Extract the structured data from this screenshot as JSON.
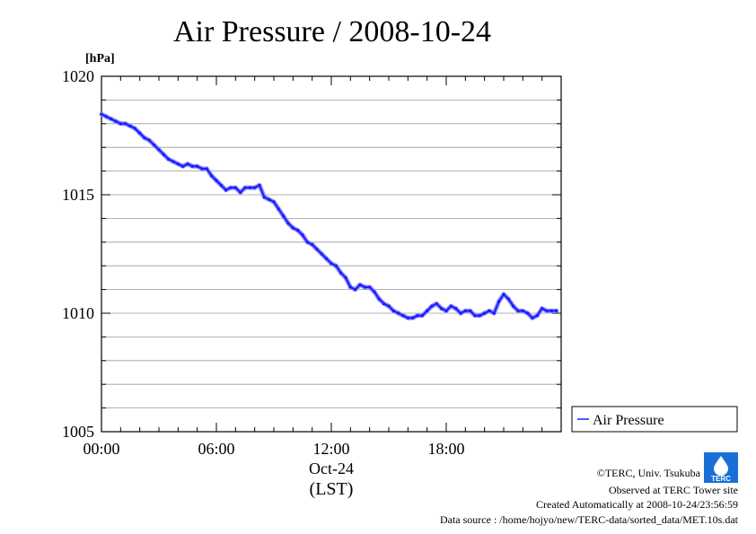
{
  "chart_data": {
    "type": "line",
    "title": "Air Pressure / 2008-10-24",
    "y_unit_label": "[hPa]",
    "xlabel_date": "Oct-24",
    "xlabel_tz": "(LST)",
    "x_ticks": [
      "00:00",
      "06:00",
      "12:00",
      "18:00"
    ],
    "y_ticks": [
      "1005",
      "1010",
      "1015",
      "1020"
    ],
    "ylim": [
      1005,
      1020
    ],
    "xlim_hours": [
      0,
      24
    ],
    "grid": true,
    "legend_position": "right",
    "series": [
      {
        "name": "Air Pressure",
        "color": "#1a1aff",
        "x": [
          0.0,
          0.25,
          0.5,
          0.75,
          1.0,
          1.25,
          1.5,
          1.75,
          2.0,
          2.25,
          2.5,
          2.75,
          3.0,
          3.25,
          3.5,
          3.75,
          4.0,
          4.25,
          4.5,
          4.75,
          5.0,
          5.25,
          5.5,
          5.75,
          6.0,
          6.25,
          6.5,
          6.75,
          7.0,
          7.25,
          7.5,
          7.75,
          8.0,
          8.25,
          8.5,
          8.75,
          9.0,
          9.25,
          9.5,
          9.75,
          10.0,
          10.25,
          10.5,
          10.75,
          11.0,
          11.25,
          11.5,
          11.75,
          12.0,
          12.25,
          12.5,
          12.75,
          13.0,
          13.25,
          13.5,
          13.75,
          14.0,
          14.25,
          14.5,
          14.75,
          15.0,
          15.25,
          15.5,
          15.75,
          16.0,
          16.25,
          16.5,
          16.75,
          17.0,
          17.25,
          17.5,
          17.75,
          18.0,
          18.25,
          18.5,
          18.75,
          19.0,
          19.25,
          19.5,
          19.75,
          20.0,
          20.25,
          20.5,
          20.75,
          21.0,
          21.25,
          21.5,
          21.75,
          22.0,
          22.25,
          22.5,
          22.75,
          23.0,
          23.25,
          23.5,
          23.75
        ],
        "values": [
          1018.4,
          1018.3,
          1018.2,
          1018.1,
          1018.0,
          1018.0,
          1017.9,
          1017.8,
          1017.6,
          1017.4,
          1017.3,
          1017.1,
          1016.9,
          1016.7,
          1016.5,
          1016.4,
          1016.3,
          1016.2,
          1016.3,
          1016.2,
          1016.2,
          1016.1,
          1016.1,
          1015.8,
          1015.6,
          1015.4,
          1015.2,
          1015.3,
          1015.3,
          1015.1,
          1015.3,
          1015.3,
          1015.3,
          1015.4,
          1014.9,
          1014.8,
          1014.7,
          1014.4,
          1014.1,
          1013.8,
          1013.6,
          1013.5,
          1013.3,
          1013.0,
          1012.9,
          1012.7,
          1012.5,
          1012.3,
          1012.1,
          1012.0,
          1011.7,
          1011.5,
          1011.1,
          1011.0,
          1011.2,
          1011.1,
          1011.1,
          1010.9,
          1010.6,
          1010.4,
          1010.3,
          1010.1,
          1010.0,
          1009.9,
          1009.8,
          1009.8,
          1009.9,
          1009.9,
          1010.1,
          1010.3,
          1010.4,
          1010.2,
          1010.1,
          1010.3,
          1010.2,
          1010.0,
          1010.1,
          1010.1,
          1009.9,
          1009.9,
          1010.0,
          1010.1,
          1010.0,
          1010.5,
          1010.8,
          1010.6,
          1010.3,
          1010.1,
          1010.1,
          1010.0,
          1009.8,
          1009.9,
          1010.2,
          1010.1,
          1010.1,
          1010.1
        ]
      }
    ]
  },
  "footer": {
    "copyright": "©TERC, Univ. Tsukuba",
    "observed": "Observed at TERC Tower site",
    "created": "Created Automatically at 2008-10-24/23:56:59",
    "source": "Data source : /home/hojyo/new/TERC-data/sorted_data/MET.10s.dat"
  },
  "logo": {
    "text": "TERC",
    "color": "#1a6fd6"
  }
}
